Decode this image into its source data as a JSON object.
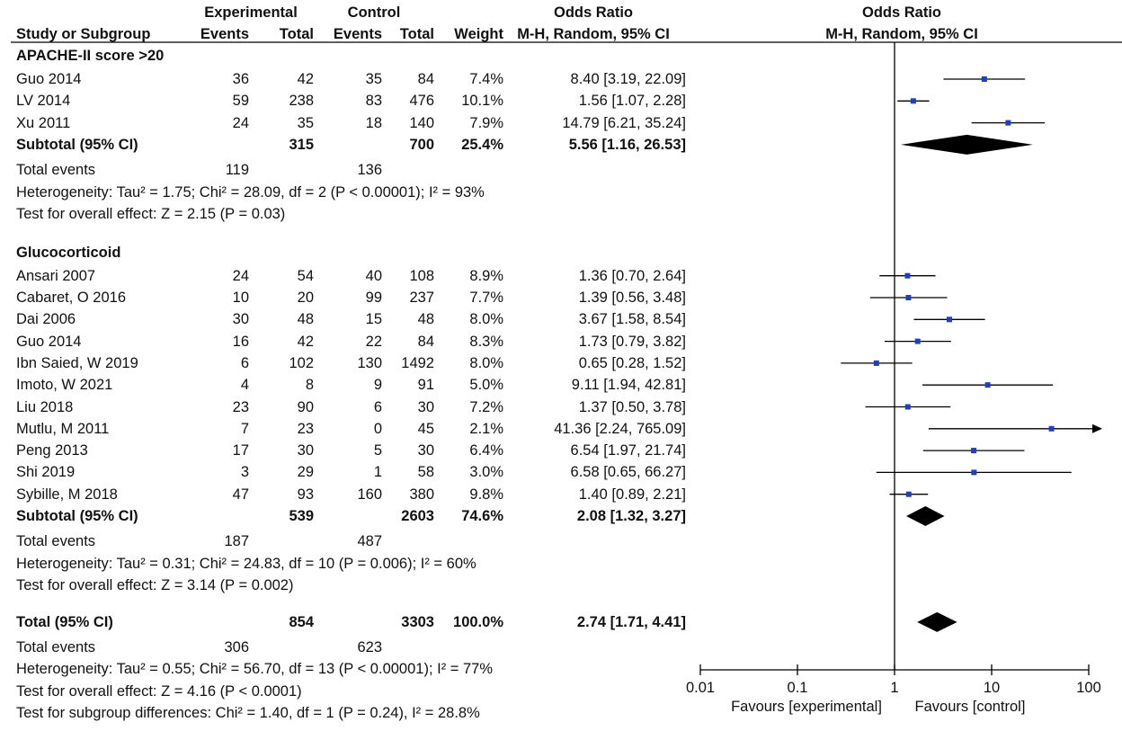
{
  "chart_data": {
    "type": "forest",
    "title": "Odds Ratio",
    "method": "M-H, Random, 95% CI",
    "header": {
      "study": "Study or Subgroup",
      "experimental": "Experimental",
      "control": "Control",
      "events": "Events",
      "total": "Total",
      "weight": "Weight",
      "or": "Odds Ratio",
      "method": "M-H, Random, 95% CI",
      "plot_title": "Odds Ratio",
      "plot_method": "M-H, Random, 95% CI"
    },
    "x_scale": "log",
    "x_range": [
      0.01,
      100
    ],
    "x_ticks": [
      {
        "value": 0.01,
        "label": "0.01"
      },
      {
        "value": 0.1,
        "label": "0.1"
      },
      {
        "value": 1,
        "label": "1"
      },
      {
        "value": 10,
        "label": "10"
      },
      {
        "value": 100,
        "label": "100"
      }
    ],
    "favours_left": "Favours [experimental]",
    "favours_right": "Favours [control]",
    "subgroups": [
      {
        "name": "APACHE-II score >20",
        "studies": [
          {
            "name": "Guo 2014",
            "ee": "36",
            "et": "42",
            "ce": "35",
            "ct": "84",
            "w": "7.4%",
            "ci": "8.40 [3.19, 22.09]",
            "or": 8.4,
            "lo": 3.19,
            "hi": 22.09
          },
          {
            "name": "LV 2014",
            "ee": "59",
            "et": "238",
            "ce": "83",
            "ct": "476",
            "w": "10.1%",
            "ci": "1.56 [1.07, 2.28]",
            "or": 1.56,
            "lo": 1.07,
            "hi": 2.28
          },
          {
            "name": "Xu 2011",
            "ee": "24",
            "et": "35",
            "ce": "18",
            "ct": "140",
            "w": "7.9%",
            "ci": "14.79 [6.21, 35.24]",
            "or": 14.79,
            "lo": 6.21,
            "hi": 35.24
          }
        ],
        "subtotal": {
          "label": "Subtotal (95% CI)",
          "et": "315",
          "ct": "700",
          "w": "25.4%",
          "ci": "5.56 [1.16, 26.53]",
          "or": 5.56,
          "lo": 1.16,
          "hi": 26.53
        },
        "total_events": {
          "label": "Total events",
          "e": "119",
          "c": "136"
        },
        "heterogeneity": "Heterogeneity: Tau² = 1.75; Chi² = 28.09, df = 2 (P < 0.00001); I² = 93%",
        "overall": "Test for overall effect: Z = 2.15 (P = 0.03)"
      },
      {
        "name": "Glucocorticoid",
        "studies": [
          {
            "name": "Ansari 2007",
            "ee": "24",
            "et": "54",
            "ce": "40",
            "ct": "108",
            "w": "8.9%",
            "ci": "1.36 [0.70, 2.64]",
            "or": 1.36,
            "lo": 0.7,
            "hi": 2.64
          },
          {
            "name": "Cabaret, O 2016",
            "ee": "10",
            "et": "20",
            "ce": "99",
            "ct": "237",
            "w": "7.7%",
            "ci": "1.39 [0.56, 3.48]",
            "or": 1.39,
            "lo": 0.56,
            "hi": 3.48
          },
          {
            "name": "Dai 2006",
            "ee": "30",
            "et": "48",
            "ce": "15",
            "ct": "48",
            "w": "8.0%",
            "ci": "3.67 [1.58, 8.54]",
            "or": 3.67,
            "lo": 1.58,
            "hi": 8.54
          },
          {
            "name": "Guo 2014",
            "ee": "16",
            "et": "42",
            "ce": "22",
            "ct": "84",
            "w": "8.3%",
            "ci": "1.73 [0.79, 3.82]",
            "or": 1.73,
            "lo": 0.79,
            "hi": 3.82
          },
          {
            "name": "Ibn Saied, W 2019",
            "ee": "6",
            "et": "102",
            "ce": "130",
            "ct": "1492",
            "w": "8.0%",
            "ci": "0.65 [0.28, 1.52]",
            "or": 0.65,
            "lo": 0.28,
            "hi": 1.52
          },
          {
            "name": "Imoto, W 2021",
            "ee": "4",
            "et": "8",
            "ce": "9",
            "ct": "91",
            "w": "5.0%",
            "ci": "9.11 [1.94, 42.81]",
            "or": 9.11,
            "lo": 1.94,
            "hi": 42.81
          },
          {
            "name": "Liu 2018",
            "ee": "23",
            "et": "90",
            "ce": "6",
            "ct": "30",
            "w": "7.2%",
            "ci": "1.37 [0.50, 3.78]",
            "or": 1.37,
            "lo": 0.5,
            "hi": 3.78
          },
          {
            "name": "Mutlu, M 2011",
            "ee": "7",
            "et": "23",
            "ce": "0",
            "ct": "45",
            "w": "2.1%",
            "ci": "41.36 [2.24, 765.09]",
            "or": 41.36,
            "lo": 2.24,
            "hi": 765.09
          },
          {
            "name": "Peng 2013",
            "ee": "17",
            "et": "30",
            "ce": "5",
            "ct": "30",
            "w": "6.4%",
            "ci": "6.54 [1.97, 21.74]",
            "or": 6.54,
            "lo": 1.97,
            "hi": 21.74
          },
          {
            "name": "Shi 2019",
            "ee": "3",
            "et": "29",
            "ce": "1",
            "ct": "58",
            "w": "3.0%",
            "ci": "6.58 [0.65, 66.27]",
            "or": 6.58,
            "lo": 0.65,
            "hi": 66.27
          },
          {
            "name": "Sybille, M 2018",
            "ee": "47",
            "et": "93",
            "ce": "160",
            "ct": "380",
            "w": "9.8%",
            "ci": "1.40 [0.89, 2.21]",
            "or": 1.4,
            "lo": 0.89,
            "hi": 2.21
          }
        ],
        "subtotal": {
          "label": "Subtotal (95% CI)",
          "et": "539",
          "ct": "2603",
          "w": "74.6%",
          "ci": "2.08 [1.32, 3.27]",
          "or": 2.08,
          "lo": 1.32,
          "hi": 3.27
        },
        "total_events": {
          "label": "Total events",
          "e": "187",
          "c": "487"
        },
        "heterogeneity": "Heterogeneity: Tau² = 0.31; Chi² = 24.83, df = 10 (P = 0.006); I² = 60%",
        "overall": "Test for overall effect: Z = 3.14 (P = 0.002)"
      }
    ],
    "total": {
      "label": "Total (95% CI)",
      "et": "854",
      "ct": "3303",
      "w": "100.0%",
      "ci": "2.74 [1.71, 4.41]",
      "or": 2.74,
      "lo": 1.71,
      "hi": 4.41
    },
    "total_events": {
      "label": "Total events",
      "e": "306",
      "c": "623"
    },
    "heterogeneity": "Heterogeneity: Tau² = 0.55; Chi² = 56.70, df = 13 (P < 0.00001); I² = 77%",
    "overall": "Test for overall effect: Z = 4.16 (P < 0.0001)",
    "subgroup_diff": "Test for subgroup differences: Chi² = 1.40, df = 1 (P = 0.24), I² = 28.8%",
    "colors": {
      "marker": "#1f3fbf",
      "line": "#000000",
      "text": "#111111"
    }
  }
}
